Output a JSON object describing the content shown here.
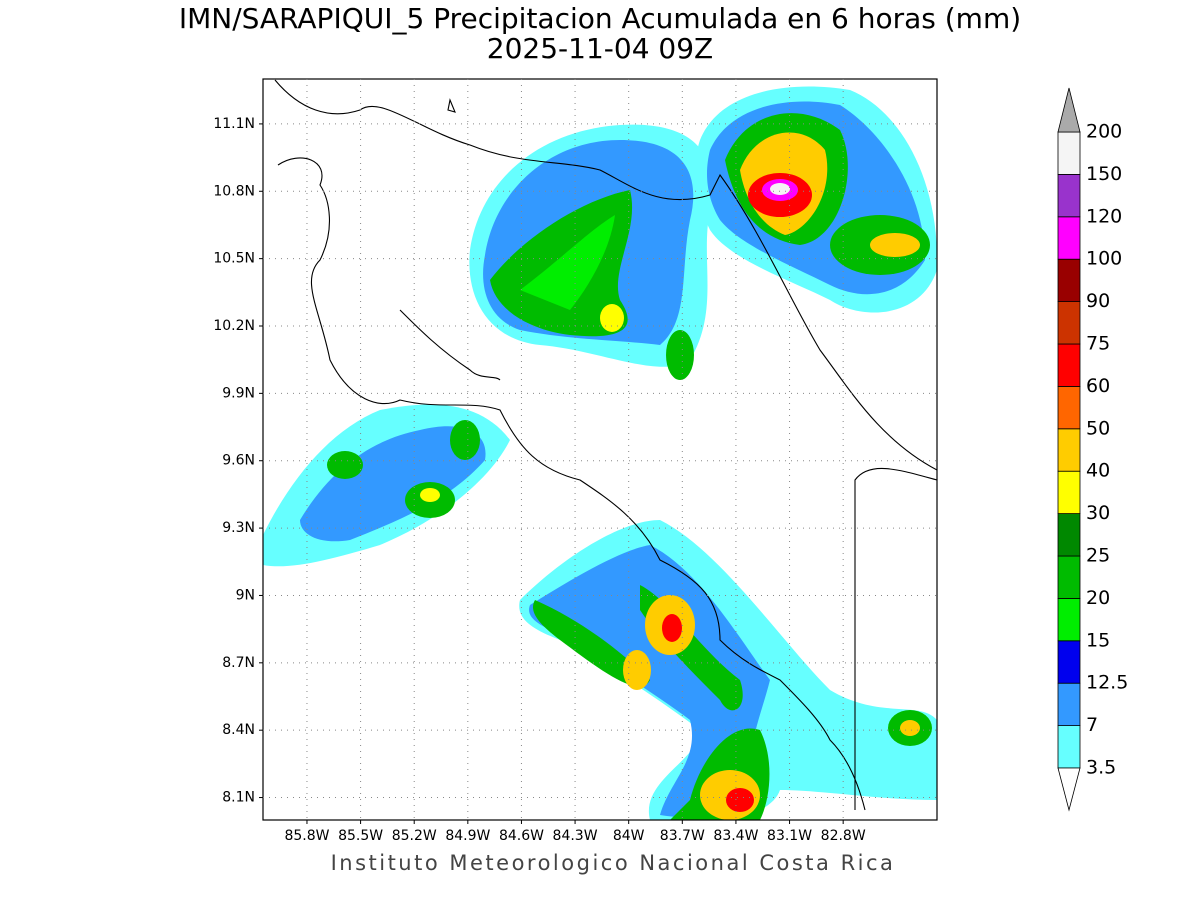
{
  "title": [
    "IMN/SARAPIQUI_5 Precipitacion Acumulada en 6 horas (mm)",
    "2025-11-04 09Z"
  ],
  "map": {
    "xlim": [
      -86.046,
      -82.275
    ],
    "ylim": [
      8.0,
      11.3
    ],
    "xticks": [
      {
        "value": -85.8,
        "label": "85.8W"
      },
      {
        "value": -85.5,
        "label": "85.5W"
      },
      {
        "value": -85.2,
        "label": "85.2W"
      },
      {
        "value": -84.9,
        "label": "84.9W"
      },
      {
        "value": -84.6,
        "label": "84.6W"
      },
      {
        "value": -84.3,
        "label": "84.3W"
      },
      {
        "value": -84,
        "label": "84W"
      },
      {
        "value": -83.7,
        "label": "83.7W"
      },
      {
        "value": -83.4,
        "label": "83.4W"
      },
      {
        "value": -83.1,
        "label": "83.1W"
      },
      {
        "value": -82.8,
        "label": "82.8W"
      }
    ],
    "yticks": [
      {
        "value": 11.1,
        "label": "11.1N"
      },
      {
        "value": 10.8,
        "label": "10.8N"
      },
      {
        "value": 10.5,
        "label": "10.5N"
      },
      {
        "value": 10.2,
        "label": "10.2N"
      },
      {
        "value": 9.9,
        "label": "9.9N"
      },
      {
        "value": 9.6,
        "label": "9.6N"
      },
      {
        "value": 9.3,
        "label": "9.3N"
      },
      {
        "value": 9,
        "label": "9N"
      },
      {
        "value": 8.7,
        "label": "8.7N"
      },
      {
        "value": 8.4,
        "label": "8.4N"
      },
      {
        "value": 8.1,
        "label": "8.1N"
      }
    ],
    "grid": true
  },
  "colorbar": {
    "levels": [
      3.5,
      7,
      12.5,
      15,
      20,
      25,
      30,
      40,
      50,
      60,
      75,
      90,
      100,
      120,
      150,
      200
    ],
    "colors": [
      "#66ffff",
      "#3399ff",
      "#0000ee",
      "#00ee00",
      "#00bb00",
      "#008800",
      "#ffff00",
      "#ffcc00",
      "#ff6600",
      "#ff0000",
      "#cc3300",
      "#990000",
      "#ff00ff",
      "#9933cc",
      "#f5f5f5"
    ],
    "under_color": "#ffffff",
    "over_color": "#aaaaaa"
  },
  "footer": "Instituto Meteorologico Nacional Costa Rica"
}
